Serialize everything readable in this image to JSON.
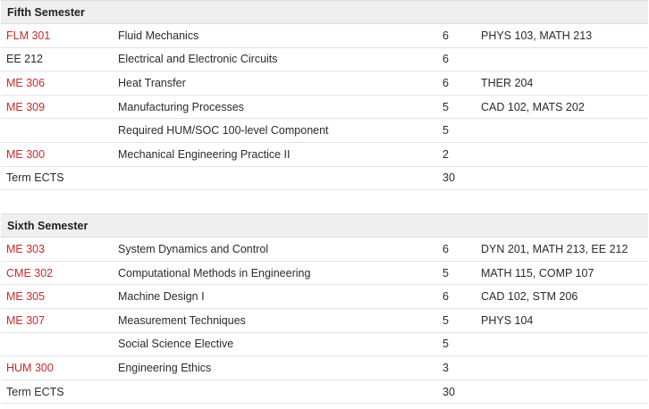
{
  "semesters": [
    {
      "title": "Fifth Semester",
      "rows": [
        {
          "code": "FLM 301",
          "link": true,
          "name": "Fluid Mechanics",
          "ects": "6",
          "prereq": "PHYS 103, MATH 213"
        },
        {
          "code": "EE 212",
          "link": false,
          "name": "Electrical and Electronic Circuits",
          "ects": "6",
          "prereq": ""
        },
        {
          "code": "ME 306",
          "link": true,
          "name": "Heat Transfer",
          "ects": "6",
          "prereq": "THER 204"
        },
        {
          "code": "ME 309",
          "link": true,
          "name": "Manufacturing Processes",
          "ects": "5",
          "prereq": "CAD 102, MATS 202"
        },
        {
          "code": "",
          "link": false,
          "name": "Required HUM/SOC 100-level Component",
          "ects": "5",
          "prereq": ""
        },
        {
          "code": "ME 300",
          "link": true,
          "name": "Mechanical Engineering Practice II",
          "ects": "2",
          "prereq": ""
        },
        {
          "code": "Term ECTS",
          "link": false,
          "name": "",
          "ects": "30",
          "prereq": ""
        }
      ]
    },
    {
      "title": "Sixth Semester",
      "rows": [
        {
          "code": "ME 303",
          "link": true,
          "name": "System Dynamics and Control",
          "ects": "6",
          "prereq": "DYN 201, MATH 213, EE 212"
        },
        {
          "code": "CME 302",
          "link": true,
          "name": "Computational Methods in Engineering",
          "ects": "5",
          "prereq": "MATH 115, COMP 107"
        },
        {
          "code": "ME 305",
          "link": true,
          "name": "Machine Design I",
          "ects": "6",
          "prereq": "CAD 102, STM 206"
        },
        {
          "code": "ME 307",
          "link": true,
          "name": "Measurement Techniques",
          "ects": "5",
          "prereq": "PHYS 104"
        },
        {
          "code": "",
          "link": false,
          "name": "Social Science Elective",
          "ects": "5",
          "prereq": ""
        },
        {
          "code": "HUM 300",
          "link": true,
          "name": "Engineering Ethics",
          "ects": "3",
          "prereq": ""
        },
        {
          "code": "Term ECTS",
          "link": false,
          "name": "",
          "ects": "30",
          "prereq": ""
        }
      ]
    }
  ],
  "colors": {
    "link": "#c62b2b",
    "header_bg": "#efefef"
  }
}
